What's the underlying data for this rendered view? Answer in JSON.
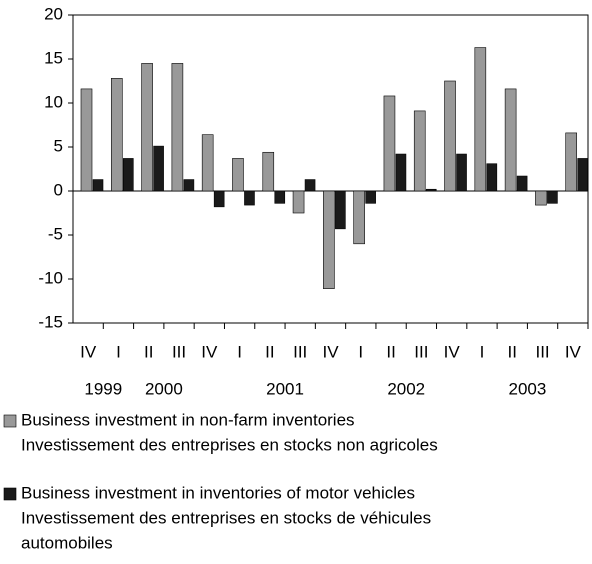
{
  "chart_data": {
    "type": "bar",
    "categories": [
      "IV",
      "I",
      "II",
      "III",
      "IV",
      "I",
      "II",
      "III",
      "IV",
      "I",
      "II",
      "III",
      "IV",
      "I",
      "II",
      "III",
      "IV"
    ],
    "years": [
      "1999",
      "2000",
      "2001",
      "2002",
      "2003"
    ],
    "series": [
      {
        "name": [
          "Business investment in non-farm inventories",
          "Investissement des entreprises en stocks non agricoles"
        ],
        "color": "#999999",
        "values": [
          11.6,
          12.8,
          14.5,
          14.5,
          6.4,
          3.7,
          4.4,
          -2.5,
          -11.1,
          -6.0,
          10.8,
          9.1,
          12.5,
          16.3,
          11.6,
          -1.6,
          6.6
        ]
      },
      {
        "name": [
          "Business investment in inventories of motor vehicles",
          "Investissement des entreprises en stocks de véhicules",
          "automobiles"
        ],
        "color": "#1a1a1a",
        "values": [
          1.3,
          3.7,
          5.1,
          1.3,
          -1.8,
          -1.6,
          -1.4,
          1.3,
          -4.3,
          -1.4,
          4.2,
          0.2,
          4.2,
          3.1,
          1.7,
          -1.4,
          3.7
        ]
      }
    ],
    "ylim": [
      -15,
      20
    ],
    "yticks": [
      -15,
      -10,
      -5,
      0,
      5,
      10,
      15,
      20
    ]
  }
}
